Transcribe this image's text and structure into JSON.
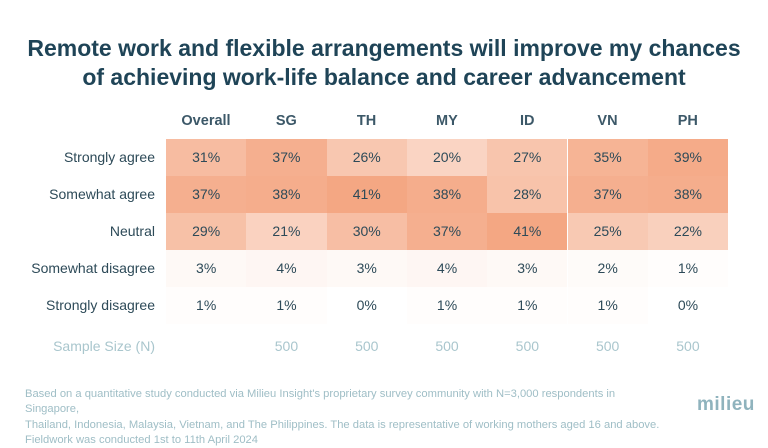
{
  "chart_data": {
    "type": "heatmap",
    "title": "Remote work and flexible arrangements will improve my chances of achieving work-life balance and career advancement",
    "title_lines": [
      "Remote work and flexible arrangements will improve my chances",
      "of achieving work-life balance and career advancement"
    ],
    "columns": [
      "Overall",
      "SG",
      "TH",
      "MY",
      "ID",
      "VN",
      "PH"
    ],
    "rows": [
      {
        "label": "Strongly agree",
        "values": [
          31,
          37,
          26,
          20,
          27,
          35,
          39
        ]
      },
      {
        "label": "Somewhat agree",
        "values": [
          37,
          38,
          41,
          38,
          28,
          37,
          38
        ]
      },
      {
        "label": "Neutral",
        "values": [
          29,
          21,
          30,
          37,
          41,
          25,
          22
        ]
      },
      {
        "label": "Somewhat disagree",
        "values": [
          3,
          4,
          3,
          4,
          3,
          2,
          1
        ]
      },
      {
        "label": "Strongly disagree",
        "values": [
          1,
          1,
          0,
          1,
          1,
          1,
          0
        ]
      }
    ],
    "unit": "%",
    "sample_size": {
      "label": "Sample Size (N)",
      "values": [
        "",
        "500",
        "500",
        "500",
        "500",
        "500",
        "500"
      ]
    },
    "color_scale": {
      "low": "#ffffff",
      "high": "#f39c74",
      "max_value": 46
    }
  },
  "footer": {
    "note_lines": [
      "Based on a quantitative study conducted via Milieu Insight's proprietary survey community with N=3,000 respondents in Singapore,",
      "Thailand, Indonesia, Malaysia, Vietnam, and The Philippines. The data is representative of working mothers aged 16 and above.",
      "Fieldwork was conducted 1st to 11th April 2024"
    ],
    "logo": "milieu"
  }
}
